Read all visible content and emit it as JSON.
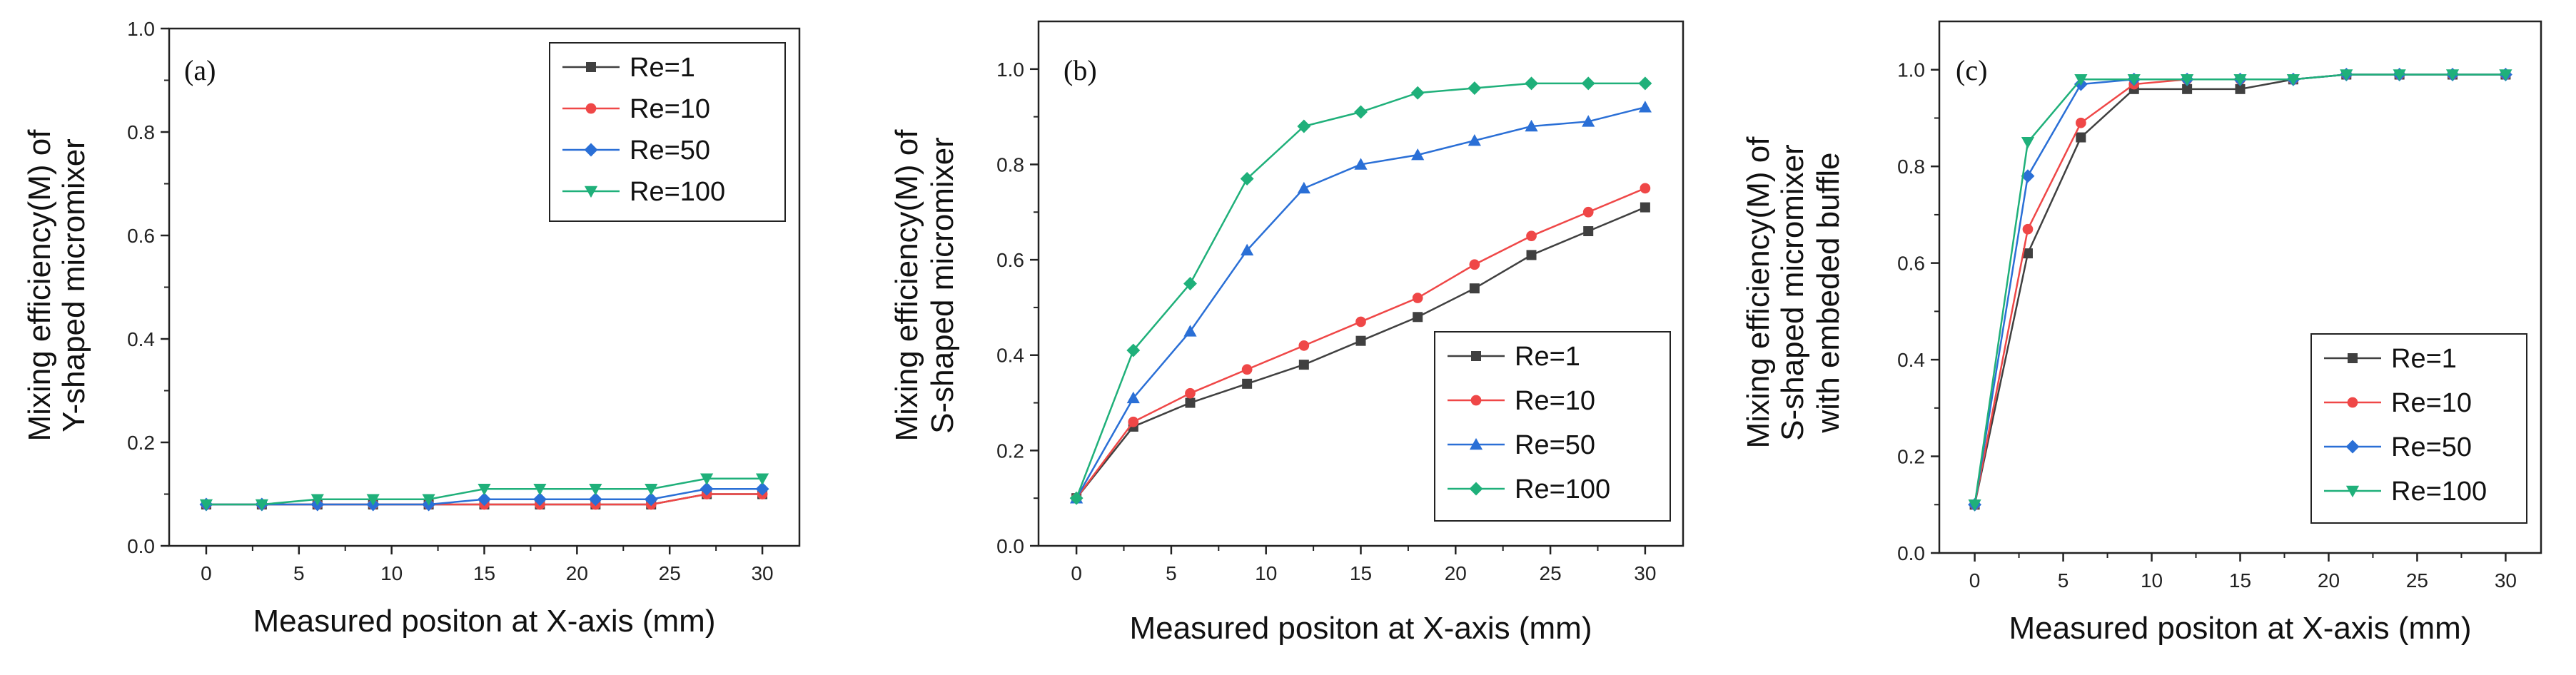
{
  "chart_data": [
    {
      "type": "line",
      "panel_label": "(a)",
      "xlabel": "Measured positon at X-axis (mm)",
      "ylabel": [
        "Mixing efficiency(M) of",
        "Y-shaped micromixer"
      ],
      "x": [
        0,
        3,
        6,
        9,
        12,
        15,
        18,
        21,
        24,
        27,
        30
      ],
      "xlim": [
        -2,
        32
      ],
      "ylim": [
        0,
        1.0
      ],
      "xticks": [
        0,
        5,
        10,
        15,
        20,
        25,
        30
      ],
      "yticks": [
        0.0,
        0.2,
        0.4,
        0.6,
        0.8,
        1.0
      ],
      "ytick_labels": [
        "0.0",
        "0.2",
        "0.4",
        "0.6",
        "0.8",
        "1.0"
      ],
      "legend_position": "top-right",
      "series": [
        {
          "name": "Re=1",
          "color": "#404040",
          "marker": "square",
          "values": [
            0.08,
            0.08,
            0.08,
            0.08,
            0.08,
            0.08,
            0.08,
            0.08,
            0.08,
            0.1,
            0.1
          ]
        },
        {
          "name": "Re=10",
          "color": "#ef4747",
          "marker": "circle",
          "values": [
            0.08,
            0.08,
            0.08,
            0.08,
            0.08,
            0.08,
            0.08,
            0.08,
            0.08,
            0.1,
            0.1
          ]
        },
        {
          "name": "Re=50",
          "color": "#2a6fd6",
          "marker": "diamond",
          "values": [
            0.08,
            0.08,
            0.08,
            0.08,
            0.08,
            0.09,
            0.09,
            0.09,
            0.09,
            0.11,
            0.11
          ]
        },
        {
          "name": "Re=100",
          "color": "#1fb07a",
          "marker": "triangle-down",
          "values": [
            0.08,
            0.08,
            0.09,
            0.09,
            0.09,
            0.11,
            0.11,
            0.11,
            0.11,
            0.13,
            0.13
          ]
        }
      ]
    },
    {
      "type": "line",
      "panel_label": "(b)",
      "xlabel": "Measured positon at X-axis (mm)",
      "ylabel": [
        "Mixing efficiency(M) of",
        "S-shaped micromixer"
      ],
      "x": [
        0,
        3,
        6,
        9,
        12,
        15,
        18,
        21,
        24,
        27,
        30
      ],
      "xlim": [
        -2,
        32
      ],
      "ylim": [
        0,
        1.1
      ],
      "xticks": [
        0,
        5,
        10,
        15,
        20,
        25,
        30
      ],
      "yticks": [
        0.0,
        0.2,
        0.4,
        0.6,
        0.8,
        1.0
      ],
      "ytick_labels": [
        "0.0",
        "0.2",
        "0.4",
        "0.6",
        "0.8",
        "1.0"
      ],
      "legend_position": "bottom-right",
      "series": [
        {
          "name": "Re=1",
          "color": "#404040",
          "marker": "square",
          "values": [
            0.1,
            0.25,
            0.3,
            0.34,
            0.38,
            0.43,
            0.48,
            0.54,
            0.61,
            0.66,
            0.71
          ]
        },
        {
          "name": "Re=10",
          "color": "#ef4747",
          "marker": "circle",
          "values": [
            0.1,
            0.26,
            0.32,
            0.37,
            0.42,
            0.47,
            0.52,
            0.59,
            0.65,
            0.7,
            0.75
          ]
        },
        {
          "name": "Re=50",
          "color": "#2a6fd6",
          "marker": "triangle-up",
          "values": [
            0.1,
            0.31,
            0.45,
            0.62,
            0.75,
            0.8,
            0.82,
            0.85,
            0.88,
            0.89,
            0.92
          ]
        },
        {
          "name": "Re=100",
          "color": "#1fb07a",
          "marker": "diamond",
          "values": [
            0.1,
            0.41,
            0.55,
            0.77,
            0.88,
            0.91,
            0.95,
            0.96,
            0.97,
            0.97,
            0.97
          ]
        }
      ]
    },
    {
      "type": "line",
      "panel_label": "(c)",
      "xlabel": "Measured positon at X-axis (mm)",
      "ylabel": [
        "Mixing efficiency(M) of",
        "S-shaped micromixer",
        "with embeded buffle"
      ],
      "x": [
        0,
        3,
        6,
        9,
        12,
        15,
        18,
        21,
        24,
        27,
        30
      ],
      "xlim": [
        -2,
        32
      ],
      "ylim": [
        0,
        1.1
      ],
      "xticks": [
        0,
        5,
        10,
        15,
        20,
        25,
        30
      ],
      "yticks": [
        0.0,
        0.2,
        0.4,
        0.6,
        0.8,
        1.0
      ],
      "ytick_labels": [
        "0.0",
        "0.2",
        "0.4",
        "0.6",
        "0.8",
        "1.0"
      ],
      "legend_position": "bottom-right",
      "series": [
        {
          "name": "Re=1",
          "color": "#404040",
          "marker": "square",
          "values": [
            0.1,
            0.62,
            0.86,
            0.96,
            0.96,
            0.96,
            0.98,
            0.99,
            0.99,
            0.99,
            0.99
          ]
        },
        {
          "name": "Re=10",
          "color": "#ef4747",
          "marker": "circle",
          "values": [
            0.1,
            0.67,
            0.89,
            0.97,
            0.98,
            0.98,
            0.98,
            0.99,
            0.99,
            0.99,
            0.99
          ]
        },
        {
          "name": "Re=50",
          "color": "#2a6fd6",
          "marker": "diamond",
          "values": [
            0.1,
            0.78,
            0.97,
            0.98,
            0.98,
            0.98,
            0.98,
            0.99,
            0.99,
            0.99,
            0.99
          ]
        },
        {
          "name": "Re=100",
          "color": "#1fb07a",
          "marker": "triangle-down",
          "values": [
            0.1,
            0.85,
            0.98,
            0.98,
            0.98,
            0.98,
            0.98,
            0.99,
            0.99,
            0.99,
            0.99
          ]
        }
      ]
    }
  ]
}
